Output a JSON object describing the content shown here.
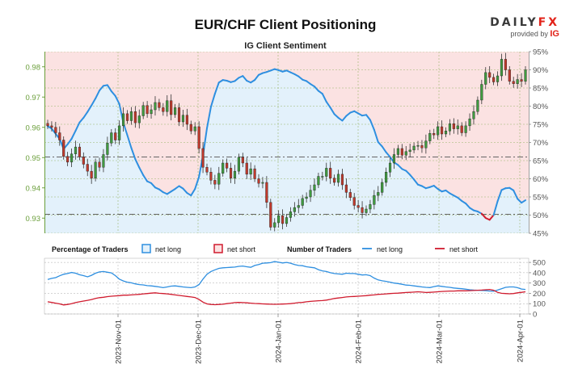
{
  "chart_data": [
    {
      "type": "candlestick",
      "title": "EUR/CHF Client Positioning",
      "subtitle": "IG Client Sentiment",
      "x_dates": [
        "2023-Nov-01",
        "2023-Dec-01",
        "2024-Jan-01",
        "2024-Feb-01",
        "2024-Mar-01",
        "2024-Apr-01"
      ],
      "y_ticks": [
        "0.93",
        "0.94",
        "0.95",
        "0.96",
        "0.97",
        "0.98"
      ],
      "ylim": [
        0.925,
        0.985
      ],
      "y2_ticks": [
        "45%",
        "50%",
        "55%",
        "60%",
        "65%",
        "70%",
        "75%",
        "80%",
        "85%",
        "90%",
        "95%"
      ],
      "y2lim": [
        45,
        95
      ],
      "price_close": [
        0.9605,
        0.96,
        0.9582,
        0.9558,
        0.9504,
        0.9485,
        0.9512,
        0.9535,
        0.9502,
        0.9478,
        0.9455,
        0.9432,
        0.9485,
        0.9468,
        0.951,
        0.9548,
        0.9582,
        0.9558,
        0.9605,
        0.9645,
        0.9622,
        0.9652,
        0.9615,
        0.9638,
        0.9672,
        0.9645,
        0.9658,
        0.9682,
        0.9665,
        0.9652,
        0.9688,
        0.9642,
        0.9665,
        0.9618,
        0.964,
        0.961,
        0.9588,
        0.9602,
        0.953,
        0.9468,
        0.9452,
        0.9425,
        0.9412,
        0.9448,
        0.9482,
        0.9465,
        0.9432,
        0.9455,
        0.9501,
        0.9482,
        0.9445,
        0.9463,
        0.943,
        0.9415,
        0.9418,
        0.9352,
        0.927,
        0.9285,
        0.9308,
        0.9282,
        0.9302,
        0.9321,
        0.9335,
        0.9342,
        0.9365,
        0.937,
        0.9392,
        0.941,
        0.9438,
        0.9438,
        0.9465,
        0.9432,
        0.9418,
        0.9445,
        0.941,
        0.9385,
        0.9368,
        0.9342,
        0.9335,
        0.9318,
        0.933,
        0.9345,
        0.9375,
        0.9385,
        0.9418,
        0.9452,
        0.9482,
        0.951,
        0.953,
        0.9508,
        0.952,
        0.9525,
        0.9538,
        0.954,
        0.9532,
        0.9555,
        0.958,
        0.9575,
        0.9602,
        0.9578,
        0.9588,
        0.9612,
        0.9595,
        0.9605,
        0.9582,
        0.9605,
        0.9628,
        0.9652,
        0.969,
        0.9742,
        0.9781,
        0.9765,
        0.975,
        0.977,
        0.9825,
        0.979,
        0.9752,
        0.9744,
        0.9758,
        0.9752,
        0.979
      ],
      "sentiment_net_long_pct": [
        74.5,
        73.8,
        72.4,
        71.0,
        68.2,
        69.5,
        71.0,
        73.2,
        75.5,
        76.8,
        78.4,
        80.2,
        82.1,
        84.3,
        85.6,
        85.8,
        84.1,
        82.8,
        80.6,
        75.4,
        72.0,
        68.5,
        65.4,
        63.1,
        61.0,
        59.3,
        58.8,
        57.6,
        57.1,
        56.3,
        55.8,
        56.5,
        57.2,
        58.0,
        57.3,
        56.1,
        55.4,
        57.2,
        60.5,
        66.4,
        73.9,
        79.8,
        83.4,
        86.5,
        87.2,
        87.0,
        86.6,
        86.9,
        87.8,
        88.3,
        87.0,
        86.5,
        87.2,
        88.6,
        89.1,
        89.4,
        89.8,
        90.2,
        89.9,
        89.5,
        89.8,
        89.3,
        88.8,
        88.2,
        87.3,
        86.9,
        86.1,
        85.4,
        84.2,
        83.4,
        81.2,
        79.6,
        77.8,
        76.8,
        76.0,
        77.3,
        78.2,
        78.6,
        78.0,
        77.4,
        77.6,
        76.2,
        73.5,
        70.1,
        68.9,
        67.3,
        66.0,
        64.5,
        63.8,
        62.7,
        62.2,
        61.1,
        59.8,
        58.4,
        58.0,
        57.4,
        57.7,
        58.1,
        57.2,
        56.5,
        56.8,
        56.0,
        55.4,
        54.8,
        53.9,
        53.2,
        52.0,
        51.3,
        51.0,
        50.4,
        49.2,
        48.7,
        50.0,
        53.8,
        56.9,
        57.4,
        57.5,
        56.8,
        54.5,
        53.4,
        54.1
      ],
      "series": [
        {
          "name": "net long",
          "color": "#2e8fe0",
          "fill": "#e3f1fb"
        },
        {
          "name": "net short",
          "color": "#d01b2e",
          "fill": "#fbe2e2"
        }
      ]
    },
    {
      "type": "line",
      "legend_left_title": "Percentage of Traders",
      "legend_right_title": "Number of Traders",
      "legend_box_long": "net long",
      "legend_box_short": "net short",
      "legend_line_long": "net long",
      "legend_line_short": "net short",
      "y_ticks": [
        "0",
        "100",
        "200",
        "300",
        "400",
        "500"
      ],
      "ylim": [
        0,
        540
      ],
      "x_tick_labels": [
        "2023-Nov-01",
        "2023-Dec-01",
        "2024-Jan-01",
        "2024-Feb-01",
        "2024-Mar-01",
        "2024-Apr-01"
      ],
      "series": [
        {
          "name": "net long",
          "color": "#2e8fe0",
          "values": [
            335,
            345,
            352,
            370,
            385,
            392,
            402,
            395,
            380,
            372,
            360,
            375,
            395,
            408,
            412,
            405,
            398,
            372,
            338,
            320,
            308,
            302,
            292,
            285,
            282,
            275,
            272,
            268,
            262,
            255,
            262,
            270,
            272,
            268,
            262,
            258,
            255,
            262,
            285,
            338,
            385,
            412,
            428,
            442,
            448,
            450,
            452,
            455,
            462,
            465,
            458,
            452,
            470,
            480,
            492,
            495,
            498,
            508,
            502,
            495,
            500,
            492,
            480,
            470,
            468,
            458,
            452,
            448,
            430,
            418,
            412,
            400,
            392,
            388,
            385,
            395,
            392,
            392,
            385,
            378,
            380,
            372,
            348,
            330,
            322,
            316,
            308,
            300,
            295,
            288,
            280,
            278,
            272,
            268,
            262,
            258,
            256,
            265,
            272,
            268,
            262,
            258,
            252,
            248,
            245,
            240,
            235,
            232,
            230,
            228,
            226,
            222,
            220,
            232,
            245,
            258,
            262,
            262,
            255,
            242,
            238
          ]
        },
        {
          "name": "net short",
          "color": "#d01b2e",
          "values": [
            118,
            112,
            105,
            98,
            88,
            92,
            100,
            110,
            118,
            125,
            132,
            140,
            150,
            158,
            162,
            168,
            172,
            175,
            178,
            182,
            182,
            185,
            188,
            190,
            195,
            198,
            202,
            205,
            200,
            198,
            195,
            190,
            185,
            180,
            175,
            170,
            165,
            160,
            140,
            115,
            98,
            92,
            90,
            92,
            95,
            100,
            105,
            110,
            112,
            110,
            108,
            105,
            102,
            100,
            98,
            96,
            95,
            94,
            95,
            96,
            98,
            100,
            105,
            110,
            112,
            118,
            122,
            125,
            128,
            130,
            135,
            142,
            150,
            155,
            160,
            165,
            168,
            170,
            172,
            175,
            178,
            182,
            185,
            190,
            192,
            195,
            198,
            200,
            202,
            205,
            208,
            210,
            212,
            215,
            212,
            208,
            210,
            212,
            215,
            218,
            220,
            222,
            222,
            225,
            225,
            225,
            226,
            228,
            230,
            232,
            235,
            238,
            230,
            210,
            200,
            198,
            196,
            198,
            205,
            210,
            215
          ]
        }
      ]
    }
  ],
  "brand": {
    "name_a": "DAILY",
    "name_b": "FX",
    "provided_by": "provided by",
    "ig": "IG"
  }
}
